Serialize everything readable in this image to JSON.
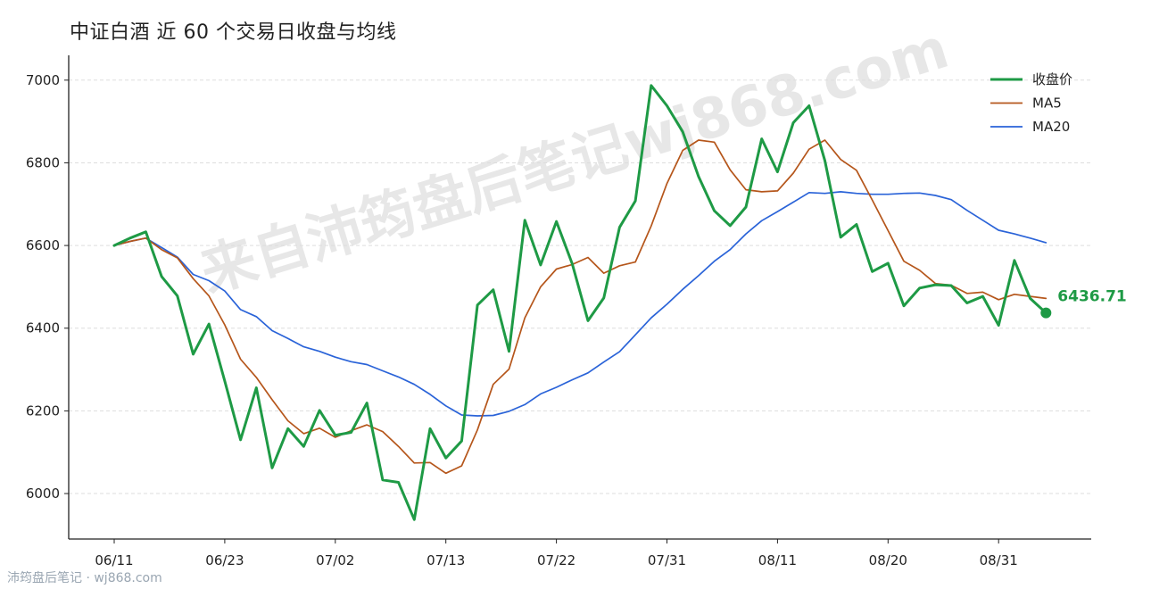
{
  "title": "中证白酒 近 60 个交易日收盘与均线",
  "watermark": {
    "diagonal_text": "来自沛筠盘后笔记wj868.com",
    "footer_text": "沛筠盘后笔记 · wj868.com"
  },
  "colors": {
    "close": "#1e9a45",
    "ma5": "#b5561b",
    "ma20": "#2a63d8",
    "grid": "#dddddd",
    "axis": "#222222"
  },
  "chart_data": {
    "type": "line",
    "title": "中证白酒 近 60 个交易日收盘与均线",
    "ylim": [
      5890,
      7060
    ],
    "yticks": [
      6000,
      6200,
      6400,
      6600,
      6800,
      7000
    ],
    "xtick_labels": [
      {
        "index": 0,
        "label": "06/11"
      },
      {
        "index": 7,
        "label": "06/23"
      },
      {
        "index": 14,
        "label": "07/02"
      },
      {
        "index": 21,
        "label": "07/13"
      },
      {
        "index": 28,
        "label": "07/22"
      },
      {
        "index": 35,
        "label": "07/31"
      },
      {
        "index": 42,
        "label": "08/11"
      },
      {
        "index": 49,
        "label": "08/20"
      },
      {
        "index": 56,
        "label": "08/31"
      }
    ],
    "grid": "horizontal dashed",
    "legend_position": "top-right",
    "last_value_label": "6436.71",
    "series": [
      {
        "name": "收盘价",
        "values": [
          6600,
          6618,
          6633,
          6525,
          6478,
          6337,
          6410,
          6272,
          6130,
          6256,
          6062,
          6157,
          6114,
          6201,
          6141,
          6148,
          6219,
          6033,
          6027,
          5937,
          6157,
          6086,
          6127,
          6456,
          6493,
          6344,
          6661,
          6553,
          6658,
          6556,
          6418,
          6473,
          6644,
          6708,
          6987,
          6938,
          6875,
          6767,
          6684,
          6648,
          6693,
          6858,
          6778,
          6897,
          6938,
          6805,
          6620,
          6651,
          6537,
          6557,
          6454,
          6497,
          6505,
          6503,
          6461,
          6477,
          6407,
          6564,
          6472,
          6437
        ]
      },
      {
        "name": "MA5",
        "values": [
          6600,
          6610,
          6618,
          6590,
          6570,
          6520,
          6478,
          6408,
          6325,
          6281,
          6227,
          6176,
          6145,
          6158,
          6136,
          6152,
          6166,
          6150,
          6114,
          6074,
          6075,
          6049,
          6067,
          6154,
          6264,
          6301,
          6425,
          6500,
          6543,
          6554,
          6571,
          6533,
          6551,
          6560,
          6647,
          6750,
          6830,
          6855,
          6850,
          6783,
          6735,
          6730,
          6732,
          6775,
          6833,
          6855,
          6808,
          6782,
          6710,
          6636,
          6562,
          6540,
          6508,
          6504,
          6484,
          6487,
          6469,
          6482,
          6477,
          6472
        ]
      },
      {
        "name": "MA20",
        "values": [
          6600,
          6610,
          6618,
          6595,
          6572,
          6530,
          6515,
          6490,
          6445,
          6428,
          6394,
          6375,
          6355,
          6344,
          6330,
          6319,
          6312,
          6297,
          6282,
          6264,
          6240,
          6212,
          6190,
          6188,
          6189,
          6199,
          6215,
          6241,
          6257,
          6275,
          6292,
          6318,
          6343,
          6384,
          6425,
          6458,
          6494,
          6527,
          6562,
          6590,
          6628,
          6660,
          6682,
          6705,
          6728,
          6726,
          6730,
          6726,
          6724,
          6724,
          6726,
          6727,
          6721,
          6711,
          6685,
          6661,
          6637,
          6628,
          6618,
          6607
        ]
      }
    ]
  },
  "legend": [
    {
      "label": "收盘价",
      "key": "close"
    },
    {
      "label": "MA5",
      "key": "ma5"
    },
    {
      "label": "MA20",
      "key": "ma20"
    }
  ]
}
